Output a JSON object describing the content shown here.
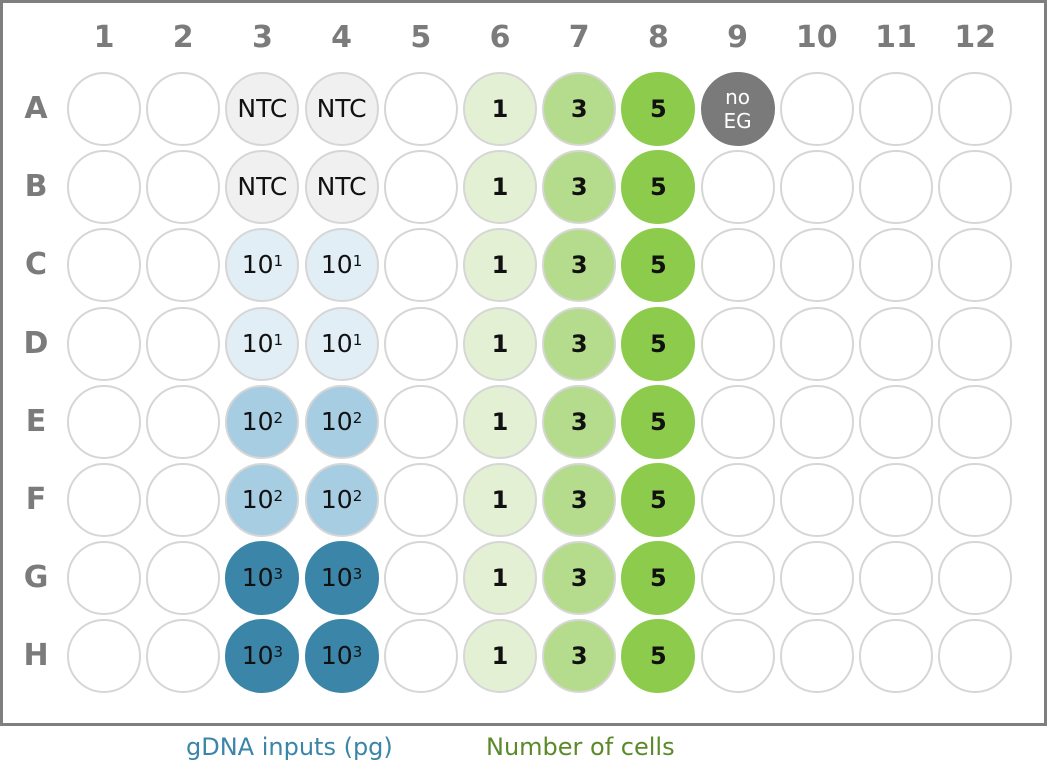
{
  "plate": {
    "columns": [
      "1",
      "2",
      "3",
      "4",
      "5",
      "6",
      "7",
      "8",
      "9",
      "10",
      "11",
      "12"
    ],
    "rows": [
      "A",
      "B",
      "C",
      "D",
      "E",
      "F",
      "G",
      "H"
    ],
    "colors": {
      "empty": "#ffffff",
      "ntc": "#f0f0f0",
      "gdna_10_1": "#e1eef6",
      "gdna_10_2": "#a6cde1",
      "gdna_10_3": "#3a85a8",
      "cells_1": "#e3f0d3",
      "cells_3": "#b5dc8c",
      "cells_5": "#8dcb4d",
      "no_eg": "#7a7a7a",
      "well_border": "#d6d6d6",
      "frame_border": "#7f7f7f",
      "label_gray": "#7b7b7b"
    },
    "wells": [
      {
        "row": "A",
        "col": 3,
        "type": "ntc",
        "label": "NTC"
      },
      {
        "row": "A",
        "col": 4,
        "type": "ntc",
        "label": "NTC"
      },
      {
        "row": "B",
        "col": 3,
        "type": "ntc",
        "label": "NTC"
      },
      {
        "row": "B",
        "col": 4,
        "type": "ntc",
        "label": "NTC"
      },
      {
        "row": "C",
        "col": 3,
        "type": "gdna_10_1",
        "base": "10",
        "exp": "1"
      },
      {
        "row": "C",
        "col": 4,
        "type": "gdna_10_1",
        "base": "10",
        "exp": "1"
      },
      {
        "row": "D",
        "col": 3,
        "type": "gdna_10_1",
        "base": "10",
        "exp": "1"
      },
      {
        "row": "D",
        "col": 4,
        "type": "gdna_10_1",
        "base": "10",
        "exp": "1"
      },
      {
        "row": "E",
        "col": 3,
        "type": "gdna_10_2",
        "base": "10",
        "exp": "2"
      },
      {
        "row": "E",
        "col": 4,
        "type": "gdna_10_2",
        "base": "10",
        "exp": "2"
      },
      {
        "row": "F",
        "col": 3,
        "type": "gdna_10_2",
        "base": "10",
        "exp": "2"
      },
      {
        "row": "F",
        "col": 4,
        "type": "gdna_10_2",
        "base": "10",
        "exp": "2"
      },
      {
        "row": "G",
        "col": 3,
        "type": "gdna_10_3",
        "base": "10",
        "exp": "3"
      },
      {
        "row": "G",
        "col": 4,
        "type": "gdna_10_3",
        "base": "10",
        "exp": "3"
      },
      {
        "row": "H",
        "col": 3,
        "type": "gdna_10_3",
        "base": "10",
        "exp": "3"
      },
      {
        "row": "H",
        "col": 4,
        "type": "gdna_10_3",
        "base": "10",
        "exp": "3"
      },
      {
        "row": "A",
        "col": 9,
        "type": "no_eg",
        "label": "no EG",
        "lines": [
          "no",
          "EG"
        ]
      }
    ],
    "cell_columns": [
      {
        "col": 6,
        "type": "cells_1",
        "label": "1"
      },
      {
        "col": 7,
        "type": "cells_3",
        "label": "3"
      },
      {
        "col": 8,
        "type": "cells_5",
        "label": "5"
      }
    ]
  },
  "legend": {
    "gdna": {
      "label": "gDNA inputs (pg)",
      "color": "#3a85a8"
    },
    "cells": {
      "label": "Number of cells",
      "color": "#5b8a2a"
    }
  }
}
